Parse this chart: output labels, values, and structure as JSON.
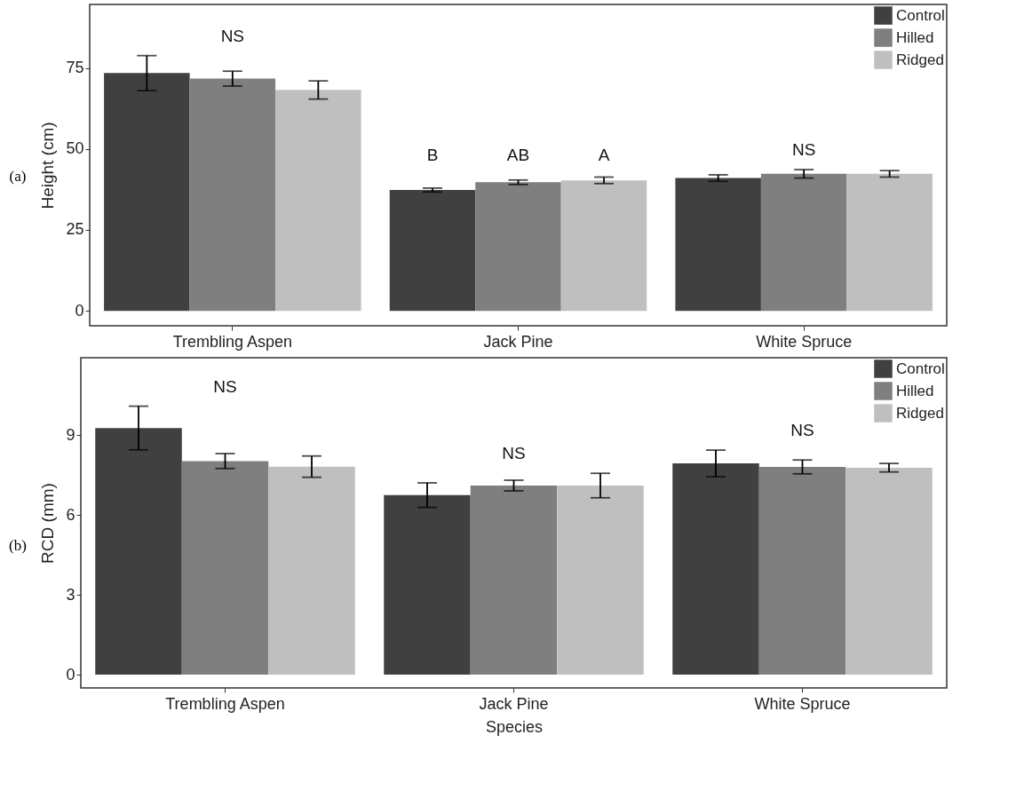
{
  "chart_data": [
    {
      "type": "bar",
      "ylabel": "Height (cm)",
      "categories": [
        "Trembling Aspen",
        "Jack Pine",
        "White Spruce"
      ],
      "series": [
        {
          "name": "Control",
          "color": "#404040",
          "values": [
            73.4,
            37.3,
            41.0
          ],
          "errors": [
            5.4,
            0.6,
            1.0
          ]
        },
        {
          "name": "Hilled",
          "color": "#7f7f7f",
          "values": [
            71.7,
            39.7,
            42.3
          ],
          "errors": [
            2.3,
            0.7,
            1.3
          ]
        },
        {
          "name": "Ridged",
          "color": "#bfbfbf",
          "values": [
            68.2,
            40.3,
            42.3
          ],
          "errors": [
            2.8,
            1.0,
            1.0
          ]
        }
      ],
      "ylim": [
        -4.6,
        94.6
      ],
      "yticks": [
        0,
        25,
        50,
        75
      ],
      "grid": false,
      "legend": "top right",
      "annotations": [
        "(a)",
        "NS",
        "B",
        "AB",
        "A",
        "NS"
      ]
    },
    {
      "type": "bar",
      "xlabel": "Species",
      "ylabel": "RCD (mm)",
      "categories": [
        "Trembling Aspen",
        "Jack Pine",
        "White Spruce"
      ],
      "series": [
        {
          "name": "Control",
          "color": "#404040",
          "values": [
            9.26,
            6.74,
            7.93
          ],
          "errors": [
            0.82,
            0.46,
            0.5
          ]
        },
        {
          "name": "Hilled",
          "color": "#7f7f7f",
          "values": [
            8.02,
            7.1,
            7.8
          ],
          "errors": [
            0.28,
            0.2,
            0.26
          ]
        },
        {
          "name": "Ridged",
          "color": "#bfbfbf",
          "values": [
            7.81,
            7.1,
            7.77
          ],
          "errors": [
            0.4,
            0.46,
            0.16
          ]
        }
      ],
      "ylim": [
        -0.5,
        11.9
      ],
      "yticks": [
        0,
        3,
        6,
        9
      ],
      "grid": false,
      "legend": "top right",
      "annotations": [
        "(b)",
        "NS",
        "NS",
        "NS"
      ]
    }
  ]
}
